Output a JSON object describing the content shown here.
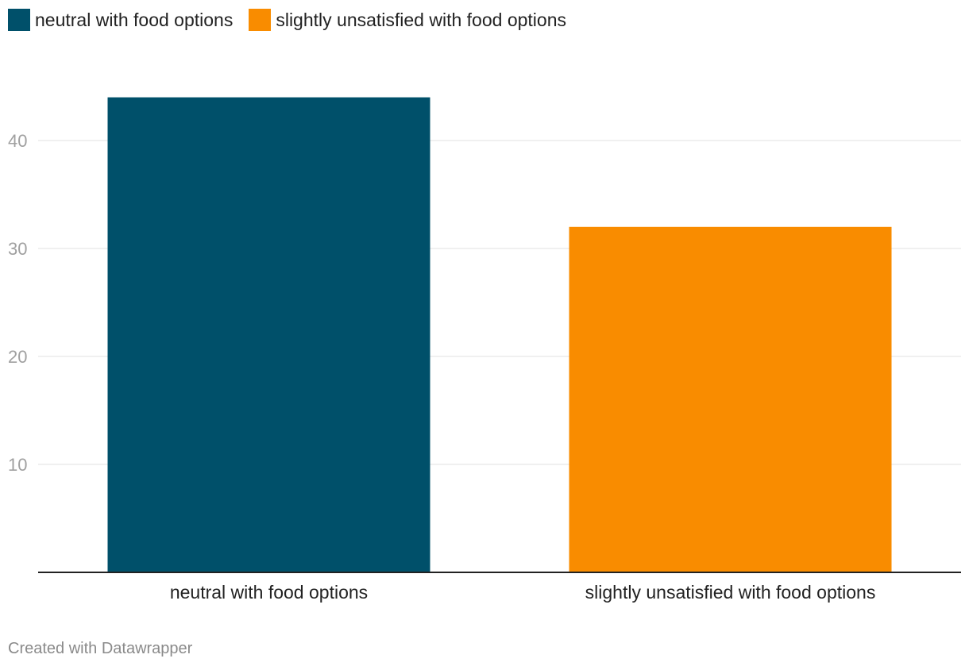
{
  "chart_data": {
    "type": "bar",
    "categories": [
      "neutral with food options",
      "slightly unsatisfied with food options"
    ],
    "values": [
      44,
      32
    ],
    "colors": [
      "#00506a",
      "#f98c00"
    ],
    "title": "",
    "xlabel": "",
    "ylabel": "",
    "ylim": [
      0,
      48
    ],
    "yticks": [
      10,
      20,
      30,
      40
    ],
    "grid": true,
    "legend_position": "top-left"
  },
  "legend": {
    "items": [
      {
        "label": "neutral with food options",
        "color": "#00506a"
      },
      {
        "label": "slightly unsatisfied with food options",
        "color": "#f98c00"
      }
    ]
  },
  "footer": {
    "credit": "Created with Datawrapper"
  }
}
